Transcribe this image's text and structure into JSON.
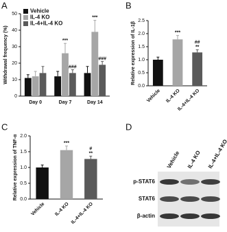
{
  "chart_data": [
    {
      "type": "bar",
      "panel": "A",
      "ylabel": "Withdrawal frequency (%)",
      "categories": [
        "Day 0",
        "Day 7",
        "Day 14"
      ],
      "series": [
        {
          "name": "Vehicle",
          "color": "#111111",
          "values": [
            11,
            12,
            14
          ],
          "errors": [
            2,
            3,
            4
          ],
          "annotations": [
            [],
            [],
            []
          ]
        },
        {
          "name": "IL-4 KO",
          "color": "#a6a6a6",
          "values": [
            12,
            26,
            39
          ],
          "errors": [
            3,
            6,
            7
          ],
          "annotations": [
            [],
            [
              "***"
            ],
            [
              "***"
            ]
          ]
        },
        {
          "name": "IL-4+IL-4 KO",
          "color": "#5a5a5a",
          "values": [
            14,
            14,
            19
          ],
          "errors": [
            4,
            2,
            2
          ],
          "annotations": [
            [],
            [
              "###"
            ],
            [
              "###"
            ]
          ]
        }
      ],
      "ylim": [
        0,
        50
      ],
      "yticks": [
        0,
        10,
        20,
        30,
        40,
        50
      ]
    },
    {
      "type": "bar",
      "panel": "B",
      "ylabel": "Relative expression of IL-1β",
      "categories": [
        "Vehicle",
        "IL-4 KO",
        "IL-4+IL-4 KO"
      ],
      "values": [
        1.0,
        1.78,
        1.28
      ],
      "errors": [
        0.1,
        0.15,
        0.1
      ],
      "colors": [
        "#111111",
        "#a6a6a6",
        "#5a5a5a"
      ],
      "annotations": [
        [],
        [
          "***"
        ],
        [
          "##",
          "**"
        ]
      ],
      "ylim": [
        0,
        2.5
      ],
      "yticks": [
        {
          "value": 0,
          "label": "0.0"
        },
        0.5,
        {
          "value": 1,
          "label": "1.0"
        },
        1.5,
        {
          "value": 2,
          "label": "2.0"
        },
        2.5
      ]
    },
    {
      "type": "bar",
      "panel": "C",
      "ylabel": "Relative expression of TNF-α",
      "categories": [
        "Vehicle",
        "IL-4 KO",
        "IL-4+IL-4 KO"
      ],
      "values": [
        1.0,
        1.55,
        1.27
      ],
      "errors": [
        0.08,
        0.13,
        0.09
      ],
      "colors": [
        "#111111",
        "#a6a6a6",
        "#5a5a5a"
      ],
      "annotations": [
        [],
        [
          "***"
        ],
        [
          "#",
          "**"
        ]
      ],
      "ylim": [
        0,
        2.0
      ],
      "yticks": [
        {
          "value": 0,
          "label": "0.0"
        },
        0.5,
        {
          "value": 1,
          "label": "1.0"
        },
        1.5,
        {
          "value": 2,
          "label": "2.0"
        }
      ]
    }
  ],
  "blot": {
    "panel": "D",
    "columns": [
      "Vehicle",
      "IL-4 KO",
      "IL-4+IL-4 KO"
    ],
    "rows": [
      "p-STAT6",
      "STAT6",
      "β-actin"
    ]
  }
}
